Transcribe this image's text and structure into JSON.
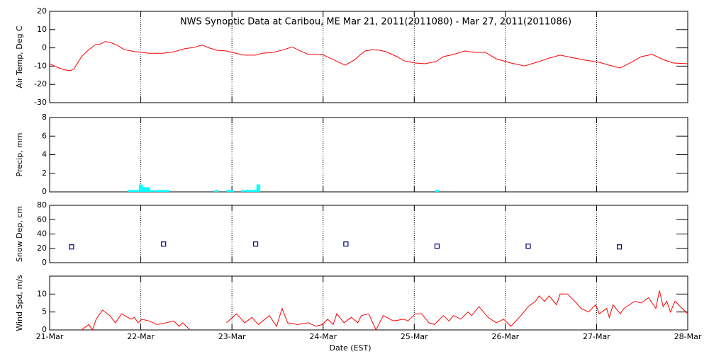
{
  "x_axis": {
    "label": "Date (EST)",
    "xlim": [
      0,
      7
    ],
    "xticks": [
      {
        "value": 0,
        "label": "21-Mar"
      },
      {
        "value": 1,
        "label": "22-Mar"
      },
      {
        "value": 2,
        "label": "23-Mar"
      },
      {
        "value": 3,
        "label": "24-Mar"
      },
      {
        "value": 4,
        "label": "25-Mar"
      },
      {
        "value": 5,
        "label": "26-Mar"
      },
      {
        "value": 6,
        "label": "27-Mar"
      },
      {
        "value": 7,
        "label": "28-Mar"
      }
    ],
    "grid": true
  },
  "chart_data": [
    {
      "type": "line",
      "title": "NWS Synoptic Data at Caribou, ME   Mar 21, 2011(2011080) - Mar 27, 2011(2011086)",
      "y_label": "Air Temp, Deg C",
      "ylim": [
        -30,
        20
      ],
      "yticks": [
        -30,
        -20,
        -10,
        0,
        10,
        20
      ],
      "color": "#ff0000",
      "x": [
        0,
        0.08,
        0.16,
        0.23,
        0.27,
        0.35,
        0.43,
        0.51,
        0.54,
        0.61,
        0.66,
        0.74,
        0.82,
        0.93,
        1.09,
        1.24,
        1.36,
        1.48,
        1.59,
        1.67,
        1.75,
        1.83,
        1.94,
        2.06,
        2.14,
        2.26,
        2.33,
        2.45,
        2.57,
        2.66,
        2.72,
        2.84,
        2.99,
        3.11,
        3.24,
        3.34,
        3.46,
        3.54,
        3.62,
        3.69,
        3.81,
        3.89,
        4.01,
        4.12,
        4.24,
        4.32,
        4.43,
        4.55,
        4.67,
        4.78,
        4.9,
        5.06,
        5.21,
        5.37,
        5.48,
        5.6,
        5.72,
        5.87,
        6.03,
        6.14,
        6.26,
        6.38,
        6.49,
        6.61,
        6.73,
        6.84,
        7.0
      ],
      "values": [
        -8.7,
        -10.6,
        -12,
        -12.5,
        -11.3,
        -4.8,
        -1,
        2,
        1.7,
        3.5,
        3,
        1.5,
        -1,
        -2,
        -3,
        -3,
        -2.2,
        -0.5,
        0.3,
        1.5,
        0,
        -1.3,
        -1.7,
        -3.2,
        -4,
        -4,
        -3,
        -2.5,
        -1,
        0.5,
        -1,
        -3.6,
        -3.6,
        -6.4,
        -9.5,
        -6.7,
        -1.7,
        -1,
        -1.3,
        -2.1,
        -4.8,
        -7.1,
        -8.3,
        -8.7,
        -7.5,
        -4.8,
        -3.6,
        -1.7,
        -2.5,
        -2.5,
        -6,
        -8.3,
        -9.9,
        -7.5,
        -5.6,
        -4,
        -5.2,
        -6.7,
        -7.9,
        -9.5,
        -11,
        -7.9,
        -4.8,
        -3.6,
        -6.4,
        -8.3,
        -8.7
      ]
    },
    {
      "type": "bar",
      "y_label": "Precip, mm",
      "ylim": [
        0,
        8
      ],
      "yticks": [
        0,
        2,
        4,
        6,
        8
      ],
      "color": "#00ffff",
      "x": [
        0.88,
        0.92,
        0.96,
        1.0,
        1.04,
        1.08,
        1.12,
        1.17,
        1.21,
        1.25,
        1.29,
        1.83,
        1.96,
        2.0,
        2.12,
        2.17,
        2.21,
        2.25,
        2.29,
        4.25
      ],
      "values": [
        0.2,
        0.2,
        0.2,
        0.8,
        0.5,
        0.5,
        0.2,
        0.2,
        0.2,
        0.2,
        0.2,
        0.2,
        0.2,
        0.2,
        0.2,
        0.2,
        0.2,
        0.2,
        0.8,
        0.2
      ]
    },
    {
      "type": "scatter",
      "y_label": "Snow Dep, cm",
      "ylim": [
        0,
        80
      ],
      "yticks": [
        0,
        20,
        40,
        60,
        80
      ],
      "color": "#000080",
      "x": [
        0.24,
        1.25,
        2.26,
        3.25,
        4.25,
        5.25,
        6.25
      ],
      "values": [
        22,
        26,
        26,
        26,
        23,
        23,
        22
      ]
    },
    {
      "type": "line",
      "y_label": "Wind Spd, m/s",
      "ylim": [
        0,
        15
      ],
      "yticks": [
        0,
        5,
        10
      ],
      "color": "#ff0000",
      "x": [
        0.35,
        0.43,
        0.47,
        0.51,
        0.58,
        0.66,
        0.72,
        0.79,
        0.89,
        0.93,
        0.97,
        1.01,
        1.09,
        1.18,
        1.28,
        1.36,
        1.42,
        1.46,
        1.54,
        1.9,
        1.94,
        2.05,
        2.14,
        2.22,
        2.29,
        2.41,
        2.49,
        2.55,
        2.61,
        2.72,
        2.84,
        2.92,
        2.99,
        3.05,
        3.11,
        3.15,
        3.23,
        3.31,
        3.38,
        3.42,
        3.5,
        3.58,
        3.66,
        3.77,
        3.89,
        3.93,
        4.01,
        4.08,
        4.16,
        4.22,
        4.32,
        4.38,
        4.43,
        4.51,
        4.59,
        4.63,
        4.71,
        4.81,
        4.9,
        4.98,
        5.06,
        5.17,
        5.25,
        5.33,
        5.37,
        5.43,
        5.48,
        5.56,
        5.6,
        5.68,
        5.76,
        5.83,
        5.91,
        5.99,
        6.03,
        6.11,
        6.14,
        6.18,
        6.26,
        6.3,
        6.42,
        6.49,
        6.57,
        6.65,
        6.69,
        6.73,
        6.77,
        6.81,
        6.86,
        6.92,
        7.0
      ],
      "values": [
        0,
        1.5,
        0,
        3,
        5.5,
        4,
        2,
        4.5,
        3,
        3.5,
        2,
        3,
        2.5,
        1.5,
        2,
        2.5,
        1,
        2,
        0,
        null,
        2,
        4.5,
        2,
        3.5,
        1.5,
        4,
        1,
        6,
        2,
        1.5,
        2,
        1,
        1.5,
        3,
        1.5,
        4.5,
        2,
        3.5,
        2,
        4,
        4.5,
        0,
        4,
        2.5,
        3,
        2.5,
        4.5,
        4.5,
        2,
        1.5,
        4,
        2.5,
        4,
        3,
        5,
        4,
        6.5,
        3.5,
        2,
        3,
        1,
        4,
        6.5,
        8,
        9.5,
        8,
        9.5,
        7,
        10,
        10,
        8,
        6,
        5,
        7,
        4.5,
        6,
        3.5,
        7,
        4.5,
        6,
        8,
        7.5,
        9,
        6,
        11,
        6.5,
        8,
        5,
        8,
        6.5,
        4.5
      ]
    }
  ]
}
